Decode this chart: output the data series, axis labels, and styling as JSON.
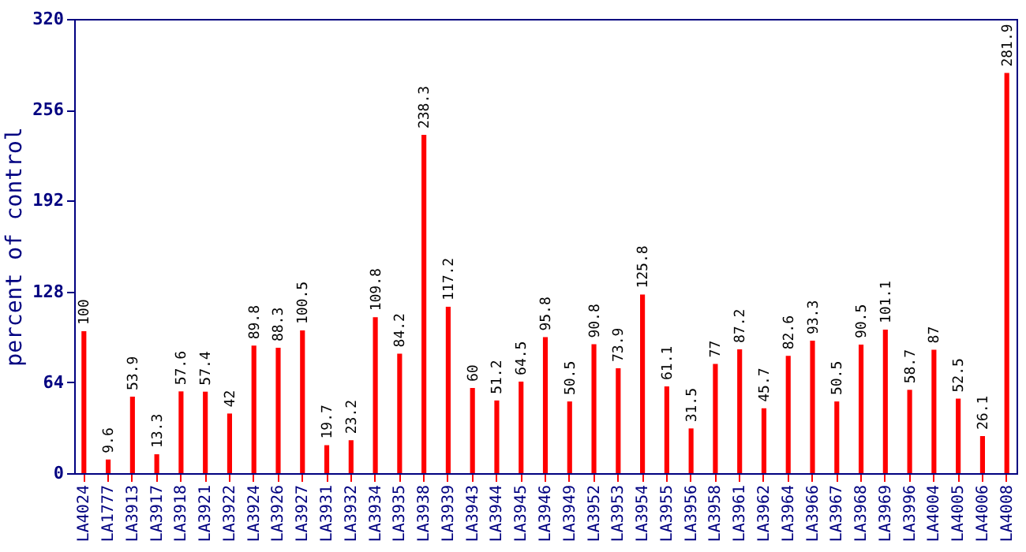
{
  "chart_data": {
    "type": "bar",
    "ylabel": "percent of control",
    "categories": [
      "LA4024",
      "LA1777",
      "LA3913",
      "LA3917",
      "LA3918",
      "LA3921",
      "LA3922",
      "LA3924",
      "LA3926",
      "LA3927",
      "LA3931",
      "LA3932",
      "LA3934",
      "LA3935",
      "LA3938",
      "LA3939",
      "LA3943",
      "LA3944",
      "LA3945",
      "LA3946",
      "LA3949",
      "LA3952",
      "LA3953",
      "LA3954",
      "LA3955",
      "LA3956",
      "LA3958",
      "LA3961",
      "LA3962",
      "LA3964",
      "LA3966",
      "LA3967",
      "LA3968",
      "LA3969",
      "LA3996",
      "LA4004",
      "LA4005",
      "LA4006",
      "LA4008"
    ],
    "values": [
      100,
      9.6,
      53.9,
      13.3,
      57.6,
      57.4,
      42,
      89.8,
      88.3,
      100.5,
      19.7,
      23.2,
      109.8,
      84.2,
      238.3,
      117.2,
      60,
      51.2,
      64.5,
      95.8,
      50.5,
      90.8,
      73.9,
      125.8,
      61.1,
      31.5,
      77,
      87.2,
      45.7,
      82.6,
      93.3,
      50.5,
      90.5,
      101.1,
      58.7,
      87,
      52.5,
      26.1,
      281.9
    ],
    "color": "#ff0000",
    "ylim": [
      0,
      320
    ],
    "yticks": [
      0,
      64,
      128,
      192,
      256,
      320
    ],
    "data_labels": true
  }
}
